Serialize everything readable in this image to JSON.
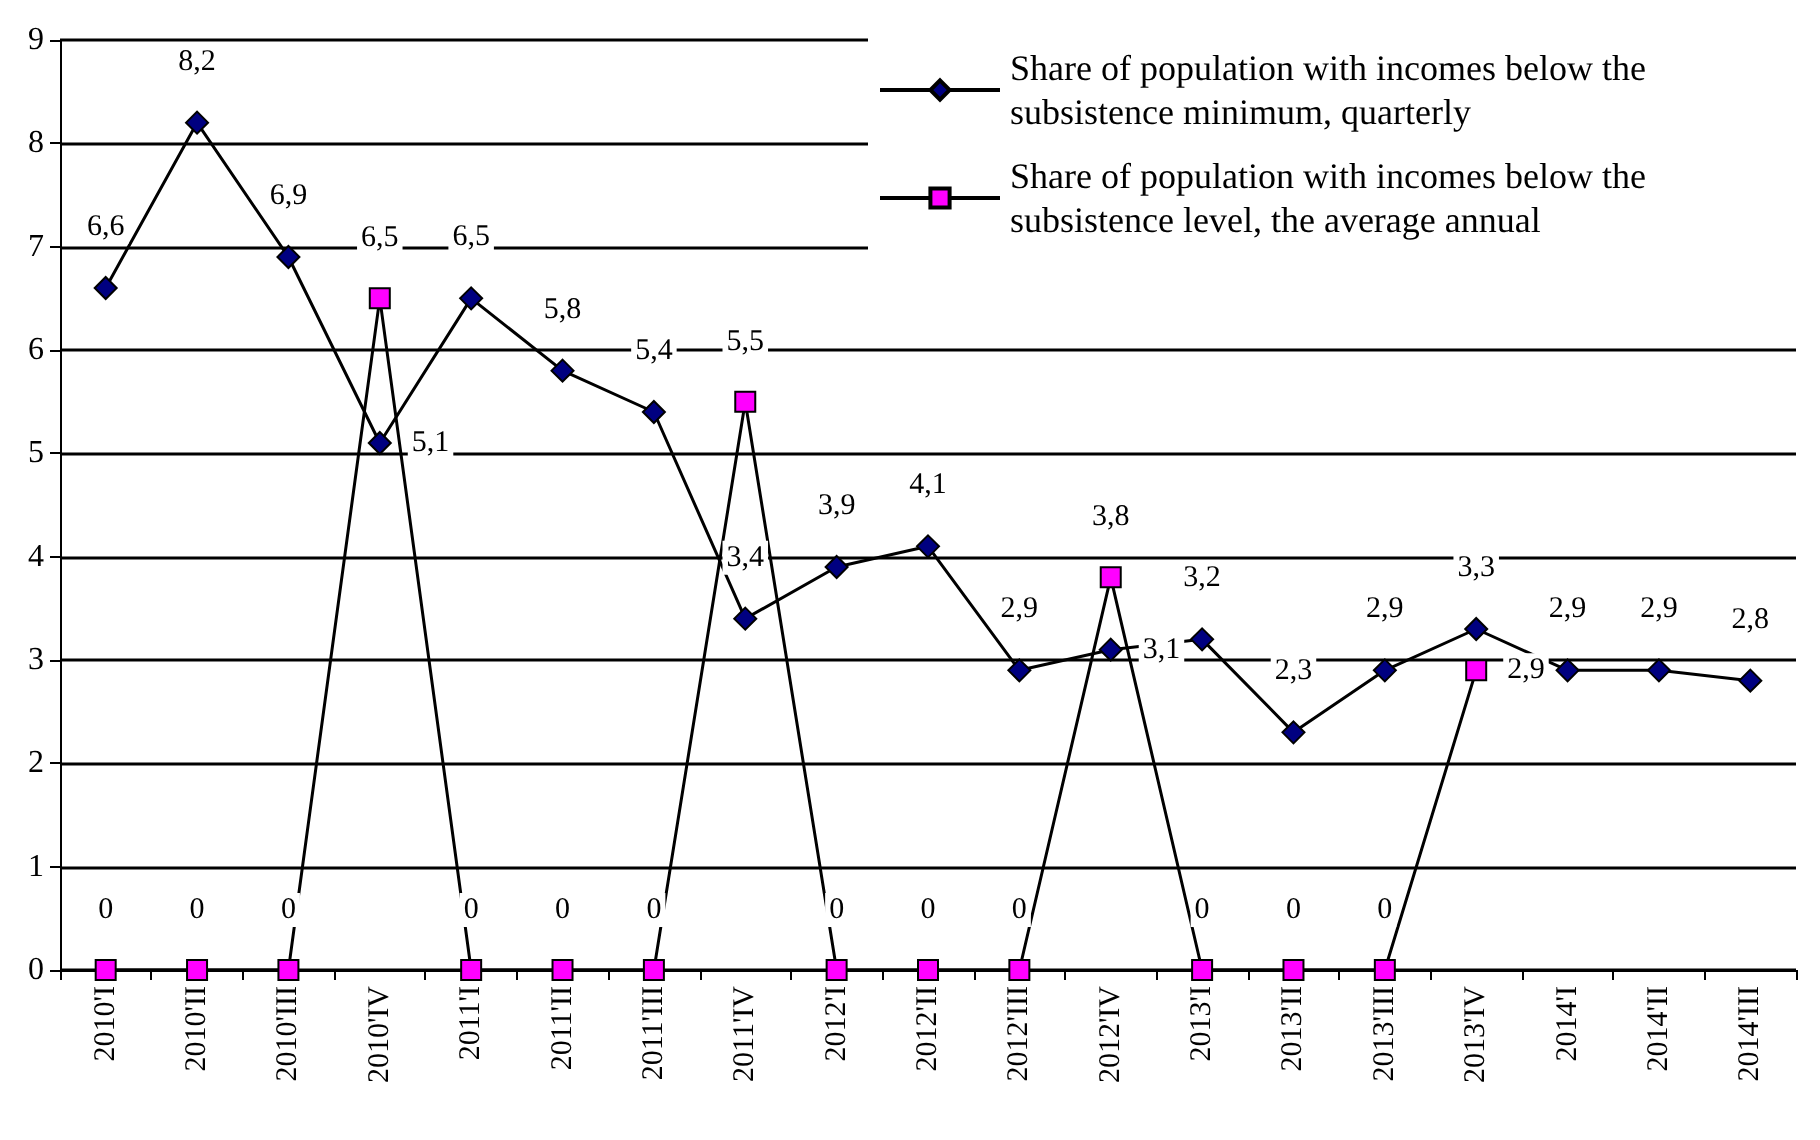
{
  "chart_data": {
    "type": "line",
    "categories": [
      "2010'I",
      "2010'II",
      "2010'III",
      "2010'IV",
      "2011'I",
      "2011'II",
      "2011'III",
      "2011'IV",
      "2012'I",
      "2012'II",
      "2012'III",
      "2012'IV",
      "2013'I",
      "2013'II",
      "2013'III",
      "2013'IV",
      "2014'I",
      "2014'II",
      "2014'III"
    ],
    "series": [
      {
        "name": "Share of population with incomes below the subsistence minimum, quarterly",
        "color": "#000080",
        "marker": "diamond",
        "values": [
          6.6,
          8.2,
          6.9,
          5.1,
          6.5,
          5.8,
          5.4,
          3.4,
          3.9,
          4.1,
          2.9,
          3.1,
          3.2,
          2.3,
          2.9,
          3.3,
          2.9,
          2.9,
          2.8
        ],
        "value_labels": [
          "6,6",
          "8,2",
          "6,9",
          "5,1",
          "6,5",
          "5,8",
          "5,4",
          "3,4",
          "3,9",
          "4,1",
          "2,9",
          "3,1",
          "3,2",
          "2,3",
          "2,9",
          "3,3",
          "2,9",
          "2,9",
          "2,8"
        ]
      },
      {
        "name": "Share of population with incomes below the subsistence level, the average annual",
        "color": "#ff00ff",
        "marker": "square",
        "values": [
          0,
          0,
          0,
          6.5,
          0,
          0,
          0,
          5.5,
          0,
          0,
          0,
          3.8,
          0,
          0,
          0,
          2.9,
          null,
          null,
          null
        ],
        "value_labels": [
          "0",
          "0",
          "0",
          "6,5",
          "0",
          "0",
          "0",
          "5,5",
          "0",
          "0",
          "0",
          "3,8",
          "0",
          "0",
          "0",
          "2,9",
          null,
          null,
          null
        ]
      }
    ],
    "ylim": [
      0,
      9
    ],
    "yticks": [
      0,
      1,
      2,
      3,
      4,
      5,
      6,
      7,
      8,
      9
    ],
    "grid": "y",
    "legend": "top right",
    "line_style": "solid"
  }
}
